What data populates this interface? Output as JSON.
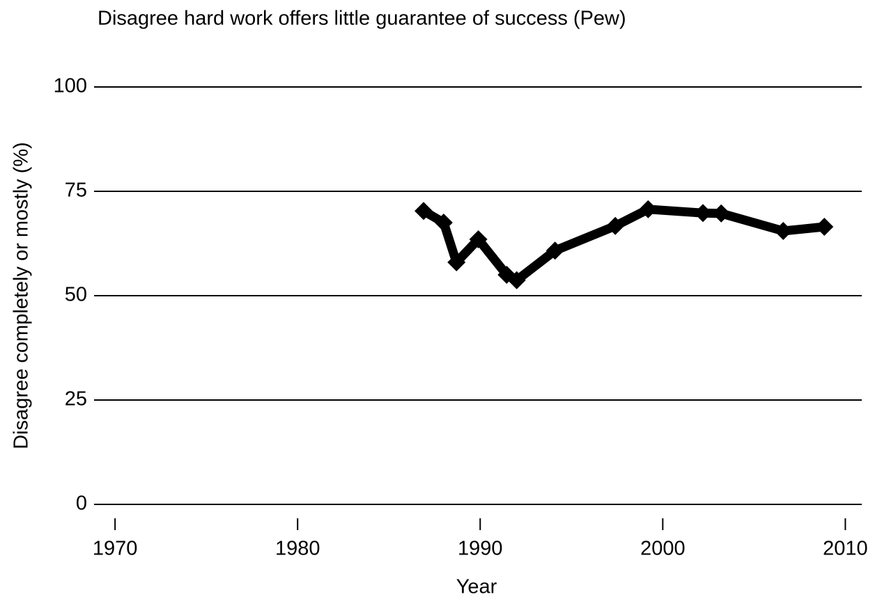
{
  "chart_data": {
    "type": "line",
    "title": "Disagree hard work offers little guarantee of success (Pew)",
    "x_label": "Year",
    "y_label": "Disagree completely or mostly (%)",
    "x": [
      1986.9,
      1988.0,
      1988.7,
      1989.9,
      1991.45,
      1992.0,
      1994.1,
      1997.4,
      1999.2,
      2002.2,
      2003.2,
      2006.6,
      2008.85
    ],
    "series": [
      {
        "name": "Disagree",
        "color": "#000000",
        "values": [
          70.3,
          67.5,
          58,
          63.5,
          55,
          53.7,
          60.8,
          66.7,
          70.7,
          69.8,
          69.7,
          65.5,
          66.5
        ]
      }
    ],
    "xlim": [
      1968.85,
      2010.9
    ],
    "xticks": [
      1970,
      1980,
      1990,
      2000,
      2010
    ],
    "ylim": [
      0,
      100
    ],
    "yticks": [
      0,
      25,
      50,
      75,
      100
    ],
    "grid": true
  }
}
